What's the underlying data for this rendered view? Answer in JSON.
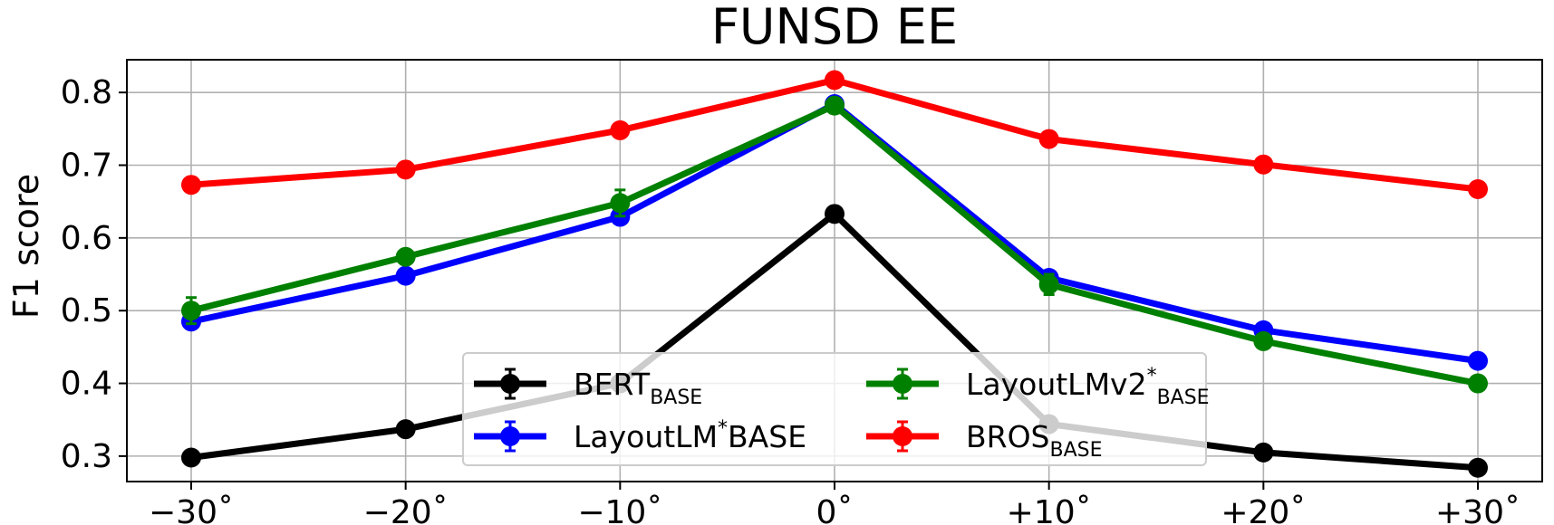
{
  "chart_data": {
    "type": "line",
    "title": "FUNSD EE",
    "xlabel": "",
    "ylabel": "F1 score",
    "categories": [
      "−30˚",
      "−20˚",
      "−10˚",
      "0˚",
      "+10˚",
      "+20˚",
      "+30˚"
    ],
    "xlim": [
      -33,
      33
    ],
    "x": [
      -30,
      -20,
      -10,
      0,
      10,
      20,
      30
    ],
    "ylim": [
      0.265,
      0.845
    ],
    "yticks": [
      "0.3",
      "0.4",
      "0.5",
      "0.6",
      "0.7",
      "0.8"
    ],
    "grid": true,
    "legend_position": "bottom-center",
    "series": [
      {
        "name": "BERT",
        "sub": "BASE",
        "sup": "",
        "color": "#000000",
        "values": [
          0.298,
          0.337,
          0.4,
          0.633,
          0.344,
          0.305,
          0.284
        ],
        "errors": [
          0.004,
          0.004,
          0.005,
          0.006,
          0.006,
          0.004,
          0.004
        ]
      },
      {
        "name": "LayoutLM",
        "sub": "",
        "sup": "*",
        "tail": "BASE",
        "color": "#0000ff",
        "values": [
          0.485,
          0.548,
          0.629,
          0.784,
          0.545,
          0.473,
          0.431
        ],
        "errors": [
          0.005,
          0.005,
          0.006,
          0.006,
          0.006,
          0.005,
          0.005
        ]
      },
      {
        "name": "LayoutLMv2",
        "sub": "BASE",
        "sup": "*",
        "color": "#008000",
        "values": [
          0.5,
          0.574,
          0.648,
          0.782,
          0.536,
          0.458,
          0.4
        ],
        "errors": [
          0.018,
          0.008,
          0.018,
          0.01,
          0.014,
          0.007,
          0.006
        ]
      },
      {
        "name": "BROS",
        "sub": "BASE",
        "sup": "",
        "color": "#ff0000",
        "values": [
          0.673,
          0.694,
          0.748,
          0.817,
          0.736,
          0.701,
          0.667
        ],
        "errors": [
          0.004,
          0.004,
          0.004,
          0.004,
          0.004,
          0.004,
          0.004
        ]
      }
    ]
  }
}
